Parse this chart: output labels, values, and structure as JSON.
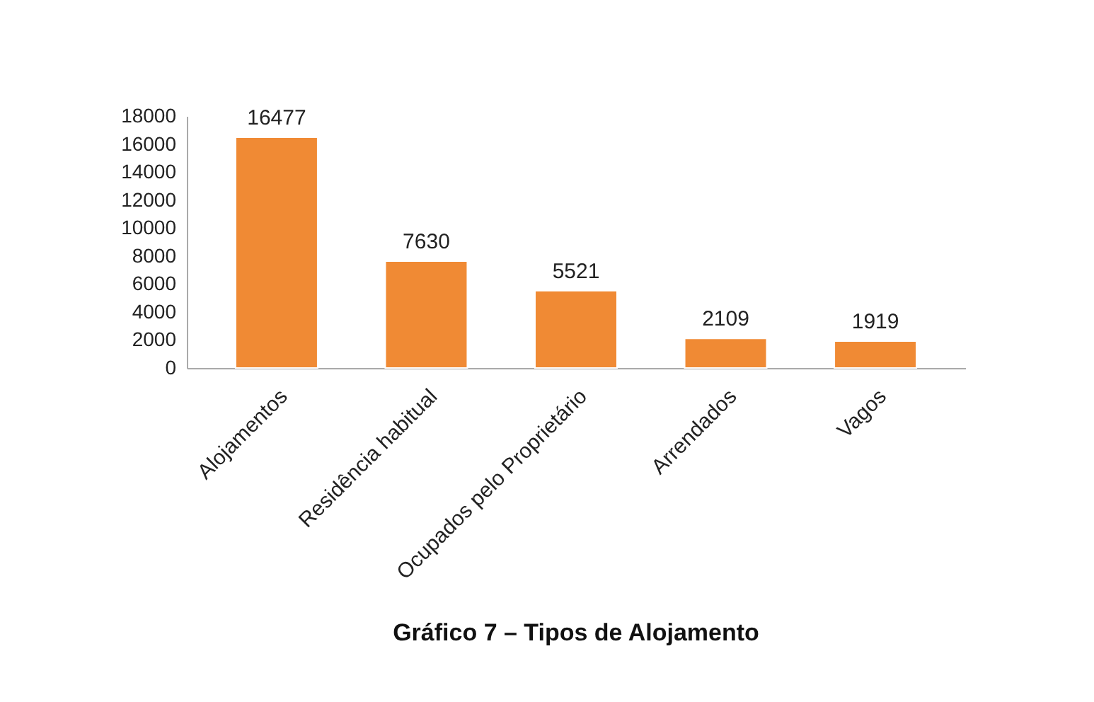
{
  "chart_data": {
    "type": "bar",
    "title": "Gráfico 7 – Tipos de Alojamento",
    "categories": [
      "Alojamentos",
      "Residência habitual",
      "Ocupados pelo Proprietário",
      "Arrendados",
      "Vagos"
    ],
    "values": [
      16477,
      7630,
      5521,
      2109,
      1919
    ],
    "color": "#f08a34",
    "ylim": [
      0,
      18000
    ],
    "yticks": [
      0,
      2000,
      4000,
      6000,
      8000,
      10000,
      12000,
      14000,
      16000,
      18000
    ],
    "data_labels": true
  }
}
